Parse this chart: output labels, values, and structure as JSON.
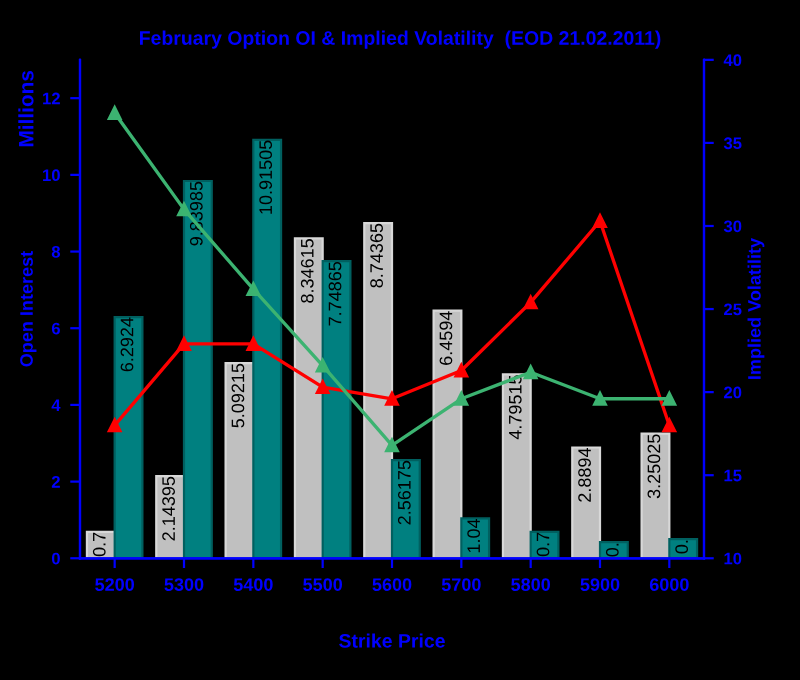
{
  "chart_data": {
    "type": "bar",
    "title": "February Option OI & Implied Volatility  (EOD 21.02.2011)",
    "xlabel": "Strike Price",
    "ylabel": "Open Interest",
    "y2label": "Implied Volatility",
    "annotations": [
      "Millions"
    ],
    "categories": [
      "5200",
      "5300",
      "5400",
      "5500",
      "5600",
      "5700",
      "5800",
      "5900",
      "6000"
    ],
    "series": [
      {
        "color": "#c0c0c0",
        "values": [
          0.69,
          2.14395,
          5.09215,
          8.34615,
          8.74365,
          6.4594,
          4.79515,
          2.8894,
          3.25025
        ],
        "value_labels": [
          "0.7",
          "2.14395",
          "5.09215",
          "8.34615",
          "8.74365",
          "6.4594",
          "4.79515",
          "2.8894",
          "3.25025"
        ]
      },
      {
        "color": "#008080",
        "values": [
          6.2924,
          9.83985,
          10.91505,
          7.74865,
          2.56175,
          1.04,
          0.69,
          0.42,
          0.5
        ],
        "value_labels": [
          "6.2924",
          "9.83985",
          "10.91505",
          "7.74865",
          "2.56175",
          "1.04",
          "0.7",
          "0.",
          "0."
        ]
      },
      {
        "type": "line",
        "axis": "y2",
        "color": "#ff0000",
        "marker": "triangle",
        "values": [
          18.0,
          22.9,
          22.9,
          20.3,
          19.6,
          21.3,
          25.4,
          30.3,
          18.0
        ]
      },
      {
        "type": "line",
        "axis": "y2",
        "color": "#3cb371",
        "marker": "triangle",
        "values": [
          36.8,
          31.0,
          26.2,
          21.6,
          16.8,
          19.6,
          21.2,
          19.6,
          19.6
        ]
      }
    ],
    "ylim": [
      0,
      13
    ],
    "yticks": [
      0,
      2,
      4,
      6,
      8,
      10,
      12
    ],
    "y2lim": [
      10,
      40
    ],
    "y2ticks": [
      10,
      15,
      20,
      25,
      30,
      35,
      40
    ],
    "grid": false,
    "legend": false
  }
}
